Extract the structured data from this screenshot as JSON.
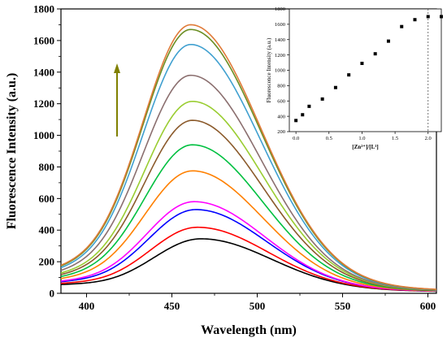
{
  "chart_data": [
    {
      "type": "line",
      "title": "",
      "xlabel": "Wavelength (nm)",
      "ylabel": "Fluorescence Intensity (a.u.)",
      "xlim": [
        385,
        605
      ],
      "ylim": [
        0,
        1800
      ],
      "x_ticks": [
        400,
        450,
        500,
        550,
        600
      ],
      "y_ticks": [
        0,
        200,
        400,
        600,
        800,
        1000,
        1200,
        1400,
        1600,
        1800
      ],
      "grid": false,
      "legend": "none",
      "annotation": "upward arrow indicating increasing intensity",
      "arrow_color": "#808000",
      "curve_model": {
        "x": [
          385,
          390,
          395,
          400,
          405,
          410,
          415,
          420,
          425,
          430,
          435,
          440,
          445,
          450,
          455,
          460,
          465,
          470,
          475,
          480,
          485,
          490,
          495,
          500,
          505,
          510,
          515,
          520,
          525,
          530,
          535,
          540,
          545,
          550,
          555,
          560,
          565,
          570,
          575,
          580,
          585,
          590,
          595,
          600,
          605
        ],
        "note": ""
      },
      "series": [
        {
          "peak_x": 467,
          "peak": 345,
          "start": 38,
          "end": 12,
          "color": "#000000"
        },
        {
          "peak_x": 465,
          "peak": 418,
          "start": 42,
          "end": 13,
          "color": "#ff0000"
        },
        {
          "peak_x": 464,
          "peak": 530,
          "start": 48,
          "end": 14,
          "color": "#0000ff"
        },
        {
          "peak_x": 463,
          "peak": 580,
          "start": 50,
          "end": 14,
          "color": "#ff00ff"
        },
        {
          "peak_x": 462,
          "peak": 775,
          "start": 58,
          "end": 15,
          "color": "#ff8000"
        },
        {
          "peak_x": 462,
          "peak": 940,
          "start": 65,
          "end": 16,
          "color": "#00c040"
        },
        {
          "peak_x": 462,
          "peak": 1095,
          "start": 72,
          "end": 17,
          "color": "#8b5a2b"
        },
        {
          "peak_x": 462,
          "peak": 1215,
          "start": 78,
          "end": 18,
          "color": "#9acd32"
        },
        {
          "peak_x": 461,
          "peak": 1380,
          "start": 85,
          "end": 19,
          "color": "#8b6f6f"
        },
        {
          "peak_x": 461,
          "peak": 1575,
          "start": 95,
          "end": 20,
          "color": "#40a0d0"
        },
        {
          "peak_x": 461,
          "peak": 1670,
          "start": 102,
          "end": 21,
          "color": "#6b8e23"
        },
        {
          "peak_x": 461,
          "peak": 1700,
          "start": 105,
          "end": 22,
          "color": "#e07b39"
        }
      ]
    },
    {
      "type": "scatter",
      "title": "",
      "xlabel": "[Zn²⁺]/[L¹]",
      "ylabel": "Fluorescence Intensity (a.u.)",
      "xlim": [
        -0.1,
        2.2
      ],
      "ylim": [
        200,
        1800
      ],
      "x_ticks": [
        0.0,
        0.5,
        1.0,
        1.5,
        2.0
      ],
      "x_tick_labels": [
        "0.0",
        "0.5",
        "1.0",
        "1.5",
        "2.0"
      ],
      "y_ticks": [
        200,
        400,
        600,
        800,
        1000,
        1200,
        1400,
        1600,
        1800
      ],
      "reference_line_x": 2.0,
      "points": [
        {
          "x": 0.0,
          "y": 345
        },
        {
          "x": 0.1,
          "y": 420
        },
        {
          "x": 0.2,
          "y": 530
        },
        {
          "x": 0.4,
          "y": 625
        },
        {
          "x": 0.6,
          "y": 775
        },
        {
          "x": 0.8,
          "y": 940
        },
        {
          "x": 1.0,
          "y": 1090
        },
        {
          "x": 1.2,
          "y": 1215
        },
        {
          "x": 1.4,
          "y": 1380
        },
        {
          "x": 1.6,
          "y": 1570
        },
        {
          "x": 1.8,
          "y": 1660
        },
        {
          "x": 2.0,
          "y": 1700
        },
        {
          "x": 2.2,
          "y": 1700
        }
      ]
    }
  ]
}
